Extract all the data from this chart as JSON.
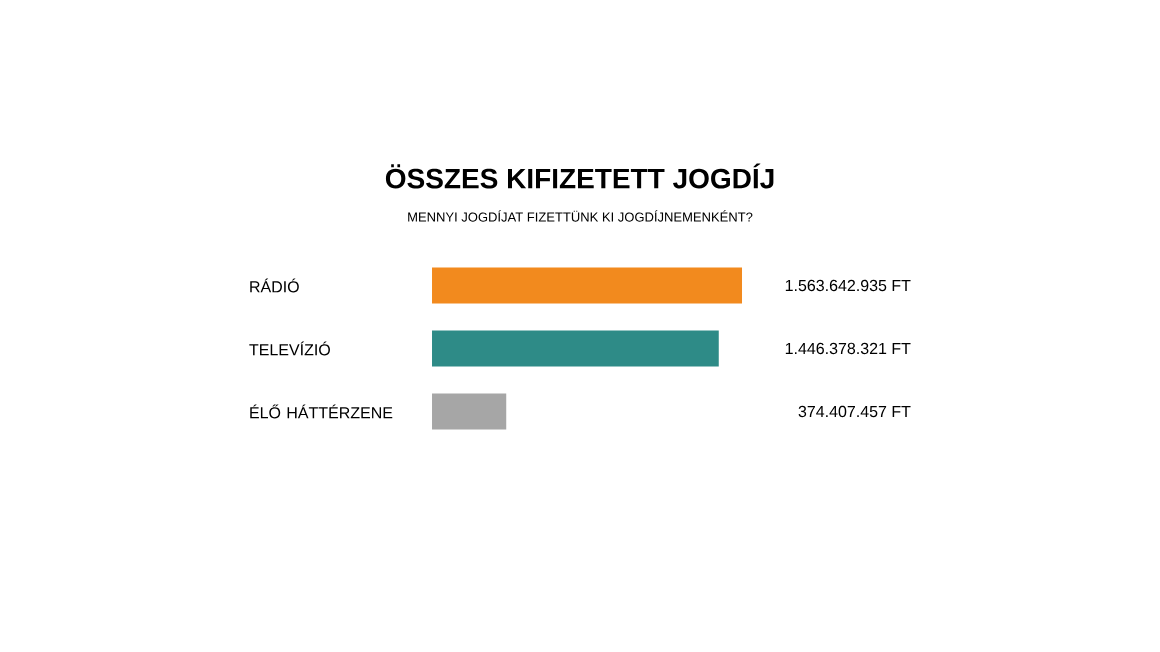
{
  "chart_data": {
    "type": "bar",
    "orientation": "horizontal",
    "title": "ÖSSZES KIFIZETETT JOGDÍJ",
    "subtitle": "MENNYI JOGDÍJAT FIZETTÜNK KI JOGDÍJNEMENKÉNT?",
    "categories": [
      "RÁDIÓ",
      "TELEVÍZIÓ",
      "ÉLŐ HÁTTÉRZENE"
    ],
    "values": [
      1563642935,
      1446378321,
      374407457
    ],
    "colors": [
      "#f28a1e",
      "#2e8b87",
      "#a6a6a6"
    ],
    "value_labels": [
      "1.563.642.935 FT",
      "1.446.378.321 FT",
      "374.407.457 FT"
    ]
  }
}
